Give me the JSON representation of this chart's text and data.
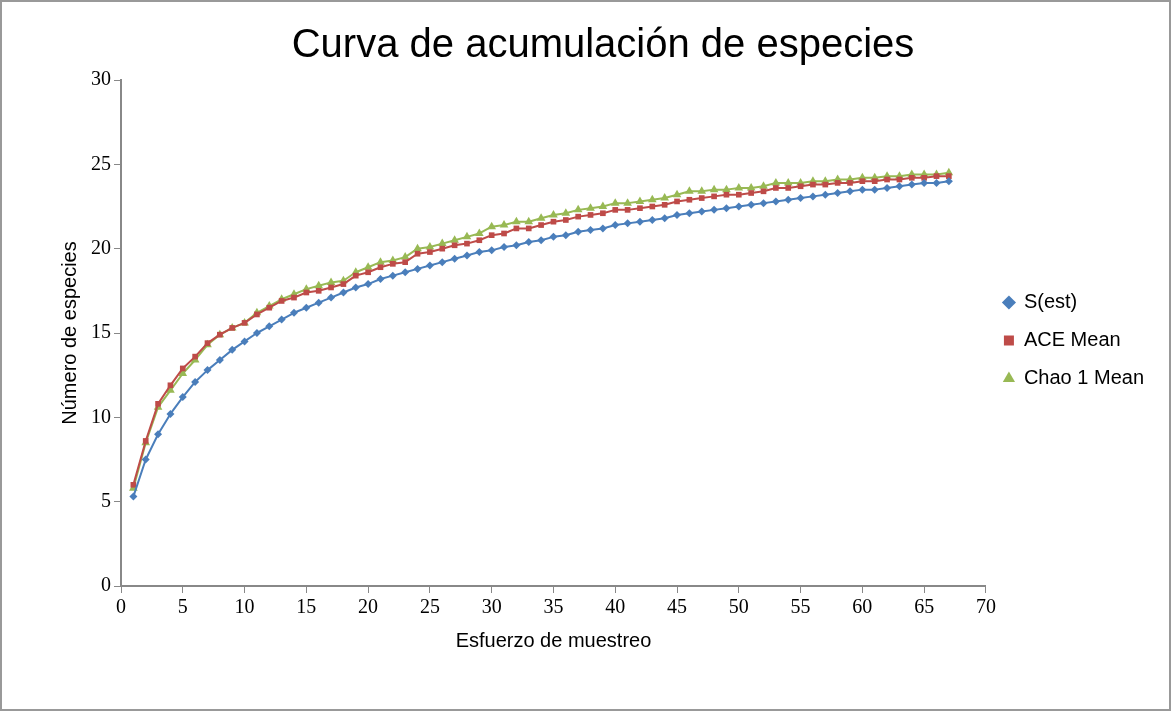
{
  "chart_data": {
    "type": "line",
    "title": "Curva de acumulación de especies",
    "xlabel": "Esfuerzo de muestreo",
    "ylabel": "Número de especies",
    "x": [
      1,
      2,
      3,
      4,
      5,
      6,
      7,
      8,
      9,
      10,
      11,
      12,
      13,
      14,
      15,
      16,
      17,
      18,
      19,
      20,
      21,
      22,
      23,
      24,
      25,
      26,
      27,
      28,
      29,
      30,
      31,
      32,
      33,
      34,
      35,
      36,
      37,
      38,
      39,
      40,
      41,
      42,
      43,
      44,
      45,
      46,
      47,
      48,
      49,
      50,
      51,
      52,
      53,
      54,
      55,
      56,
      57,
      58,
      59,
      60,
      61,
      62,
      63,
      64,
      65,
      66,
      67
    ],
    "series": [
      {
        "name": "S(est)",
        "color": "#4a7ebb",
        "marker": "diamond",
        "values": [
          5.3,
          7.5,
          9.0,
          10.2,
          11.2,
          12.1,
          12.8,
          13.4,
          14.0,
          14.5,
          15.0,
          15.4,
          15.8,
          16.2,
          16.5,
          16.8,
          17.1,
          17.4,
          17.7,
          17.9,
          18.2,
          18.4,
          18.6,
          18.8,
          19.0,
          19.2,
          19.4,
          19.6,
          19.8,
          19.9,
          20.1,
          20.2,
          20.4,
          20.5,
          20.7,
          20.8,
          21.0,
          21.1,
          21.2,
          21.4,
          21.5,
          21.6,
          21.7,
          21.8,
          22.0,
          22.1,
          22.2,
          22.3,
          22.4,
          22.5,
          22.6,
          22.7,
          22.8,
          22.9,
          23.0,
          23.1,
          23.2,
          23.3,
          23.4,
          23.5,
          23.5,
          23.6,
          23.7,
          23.8,
          23.9,
          23.9,
          24.0
        ]
      },
      {
        "name": "ACE Mean",
        "color": "#be4b48",
        "marker": "square",
        "values": [
          6.0,
          8.6,
          10.8,
          11.9,
          12.9,
          13.6,
          14.4,
          14.9,
          15.3,
          15.6,
          16.1,
          16.5,
          16.9,
          17.1,
          17.4,
          17.5,
          17.7,
          17.9,
          18.4,
          18.6,
          18.9,
          19.1,
          19.2,
          19.7,
          19.8,
          20.0,
          20.2,
          20.3,
          20.5,
          20.8,
          20.9,
          21.2,
          21.2,
          21.4,
          21.6,
          21.7,
          21.9,
          22.0,
          22.1,
          22.3,
          22.3,
          22.4,
          22.5,
          22.6,
          22.8,
          22.9,
          23.0,
          23.1,
          23.2,
          23.2,
          23.3,
          23.4,
          23.6,
          23.6,
          23.7,
          23.8,
          23.8,
          23.9,
          23.9,
          24.0,
          24.0,
          24.1,
          24.1,
          24.2,
          24.2,
          24.3,
          24.3
        ]
      },
      {
        "name": "Chao 1 Mean",
        "color": "#98b954",
        "marker": "triangle",
        "values": [
          5.8,
          8.5,
          10.6,
          11.6,
          12.6,
          13.4,
          14.3,
          14.9,
          15.3,
          15.6,
          16.2,
          16.6,
          17.0,
          17.3,
          17.6,
          17.8,
          18.0,
          18.1,
          18.6,
          18.9,
          19.2,
          19.3,
          19.5,
          20.0,
          20.1,
          20.3,
          20.5,
          20.7,
          20.9,
          21.3,
          21.4,
          21.6,
          21.6,
          21.8,
          22.0,
          22.1,
          22.3,
          22.4,
          22.5,
          22.7,
          22.7,
          22.8,
          22.9,
          23.0,
          23.2,
          23.4,
          23.4,
          23.5,
          23.5,
          23.6,
          23.6,
          23.7,
          23.9,
          23.9,
          23.9,
          24.0,
          24.0,
          24.1,
          24.1,
          24.2,
          24.2,
          24.3,
          24.3,
          24.4,
          24.4,
          24.4,
          24.5
        ]
      }
    ],
    "xlim": [
      0,
      70
    ],
    "xticks": [
      0,
      5,
      10,
      15,
      20,
      25,
      30,
      35,
      40,
      45,
      50,
      55,
      60,
      65,
      70
    ],
    "ylim": [
      0,
      30
    ],
    "yticks": [
      0,
      5,
      10,
      15,
      20,
      25,
      30
    ],
    "grid": false,
    "legend": "right",
    "line_style": "solid"
  }
}
